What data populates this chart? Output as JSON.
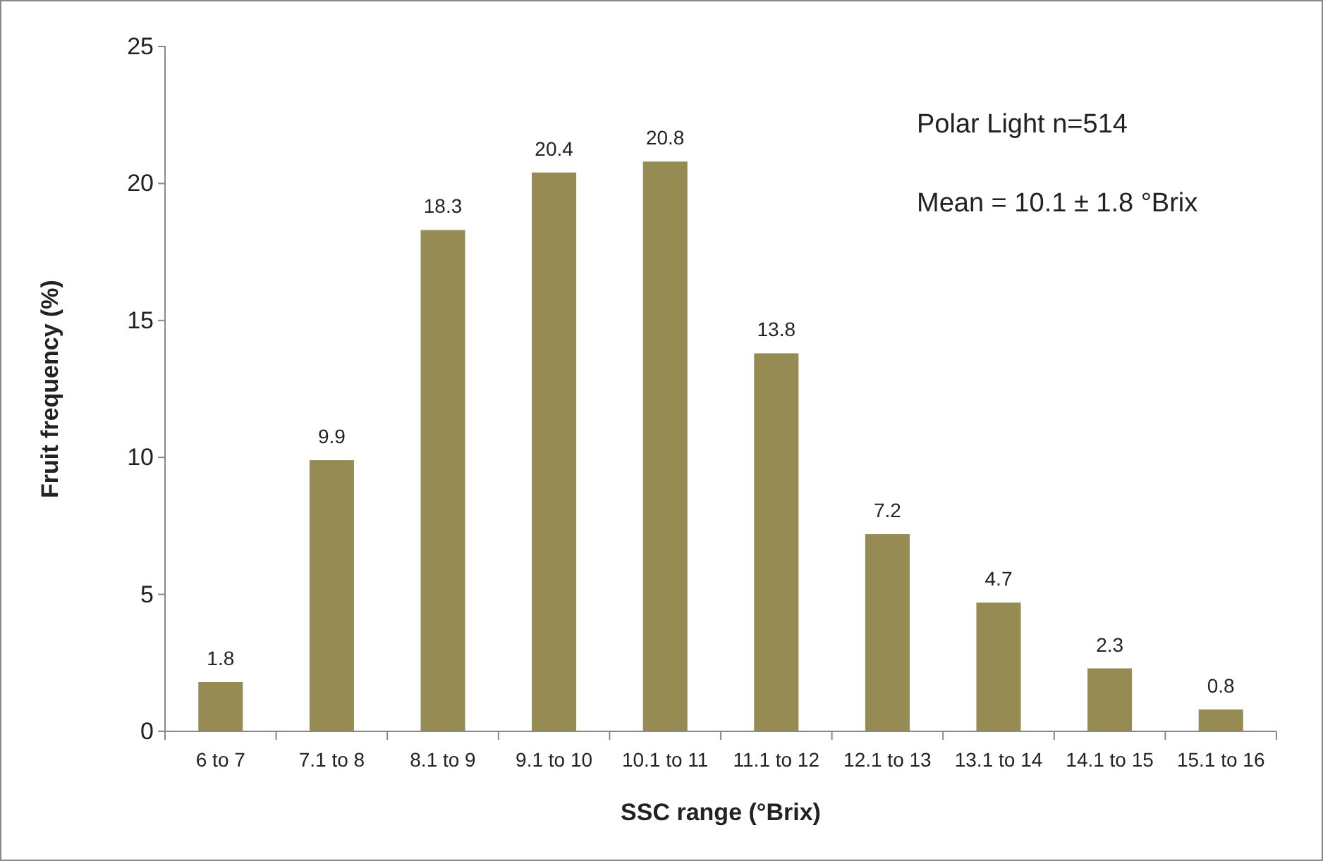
{
  "chart_data": {
    "type": "bar",
    "xlabel": "SSC range (°Brix)",
    "ylabel": "Fruit frequency (%)",
    "categories": [
      "6 to 7",
      "7.1 to 8",
      "8.1 to 9",
      "9.1 to 10",
      "10.1 to 11",
      "11.1 to 12",
      "12.1 to 13",
      "13.1 to 14",
      "14.1 to 15",
      "15.1 to 16"
    ],
    "values": [
      1.8,
      9.9,
      18.3,
      20.4,
      20.8,
      13.8,
      7.2,
      4.7,
      2.3,
      0.8
    ],
    "color": "#968b53",
    "ylim": [
      0,
      25
    ],
    "yticks": [
      0,
      5,
      10,
      15,
      20,
      25
    ],
    "grid": false,
    "data_labels": true,
    "annotations": [
      "Polar Light n=514",
      "Mean = 10.1 ± 1.8 °Brix"
    ]
  }
}
